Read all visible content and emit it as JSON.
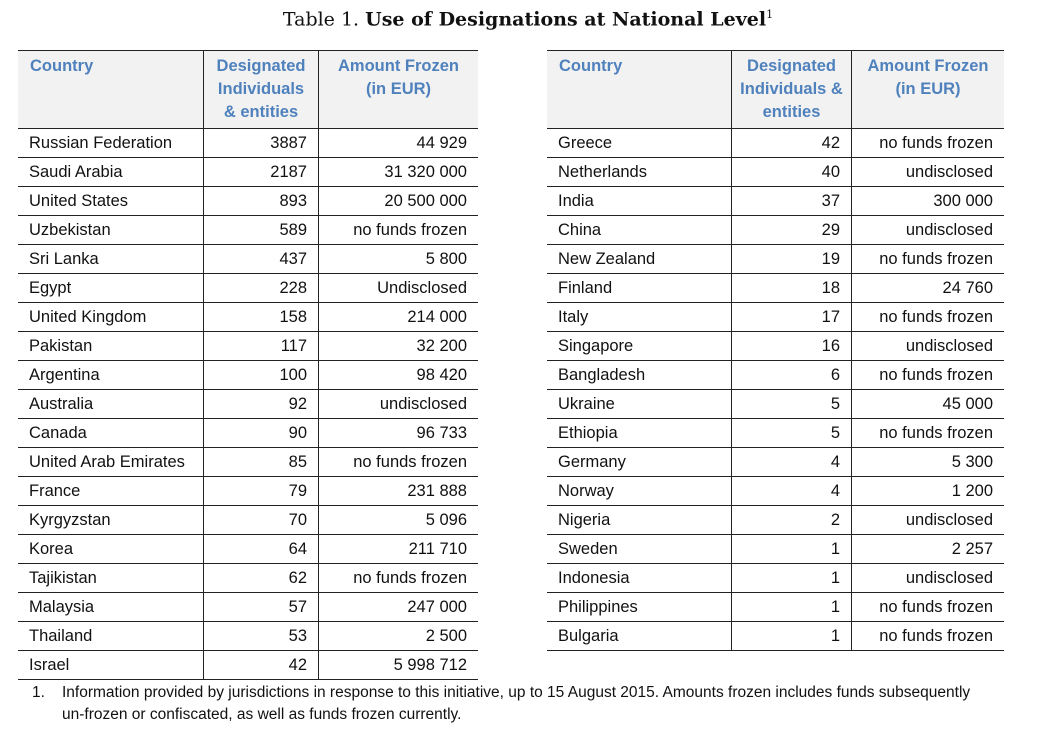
{
  "title": {
    "prefix": "Table 1. ",
    "bold": "Use of Designations at National Level",
    "sup": "1"
  },
  "headers": {
    "country": "Country",
    "designated": "Designated Individuals & entities",
    "amount": "Amount Frozen (in EUR)"
  },
  "left_rows": [
    [
      "Russian Federation",
      "3887",
      "44 929"
    ],
    [
      "Saudi Arabia",
      "2187",
      "31 320 000"
    ],
    [
      "United States",
      "893",
      "20 500 000"
    ],
    [
      "Uzbekistan",
      "589",
      "no funds frozen"
    ],
    [
      "Sri Lanka",
      "437",
      "5 800"
    ],
    [
      "Egypt",
      "228",
      "Undisclosed"
    ],
    [
      "United Kingdom",
      "158",
      "214 000"
    ],
    [
      "Pakistan",
      "117",
      "32 200"
    ],
    [
      "Argentina",
      "100",
      "98 420"
    ],
    [
      "Australia",
      "92",
      "undisclosed"
    ],
    [
      "Canada",
      "90",
      "96 733"
    ],
    [
      "United Arab Emirates",
      "85",
      "no funds frozen"
    ],
    [
      "France",
      "79",
      "231 888"
    ],
    [
      "Kyrgyzstan",
      "70",
      "5 096"
    ],
    [
      "Korea",
      "64",
      "211 710"
    ],
    [
      "Tajikistan",
      "62",
      "no funds frozen"
    ],
    [
      "Malaysia",
      "57",
      "247 000"
    ],
    [
      "Thailand",
      "53",
      "2 500"
    ],
    [
      "Israel",
      "42",
      "5 998 712"
    ]
  ],
  "right_rows": [
    [
      "Greece",
      "42",
      "no funds frozen"
    ],
    [
      "Netherlands",
      "40",
      "undisclosed"
    ],
    [
      "India",
      "37",
      "300 000"
    ],
    [
      "China",
      "29",
      "undisclosed"
    ],
    [
      "New Zealand",
      "19",
      "no funds frozen"
    ],
    [
      "Finland",
      "18",
      "24 760"
    ],
    [
      "Italy",
      "17",
      "no funds frozen"
    ],
    [
      "Singapore",
      "16",
      "undisclosed"
    ],
    [
      "Bangladesh",
      "6",
      "no funds frozen"
    ],
    [
      "Ukraine",
      "5",
      "45 000"
    ],
    [
      "Ethiopia",
      "5",
      "no funds frozen"
    ],
    [
      "Germany",
      "4",
      "5 300"
    ],
    [
      "Norway",
      "4",
      "1 200"
    ],
    [
      "Nigeria",
      "2",
      "undisclosed"
    ],
    [
      "Sweden",
      "1",
      "2 257"
    ],
    [
      "Indonesia",
      "1",
      "undisclosed"
    ],
    [
      "Philippines",
      "1",
      "no funds frozen"
    ],
    [
      "Bulgaria",
      "1",
      "no funds frozen"
    ]
  ],
  "footnote": {
    "number": "1.",
    "text": "Information provided by jurisdictions in response to this initiative, up to 15 August 2015. Amounts frozen includes funds subsequently un-frozen or confiscated, as well as funds frozen currently."
  }
}
